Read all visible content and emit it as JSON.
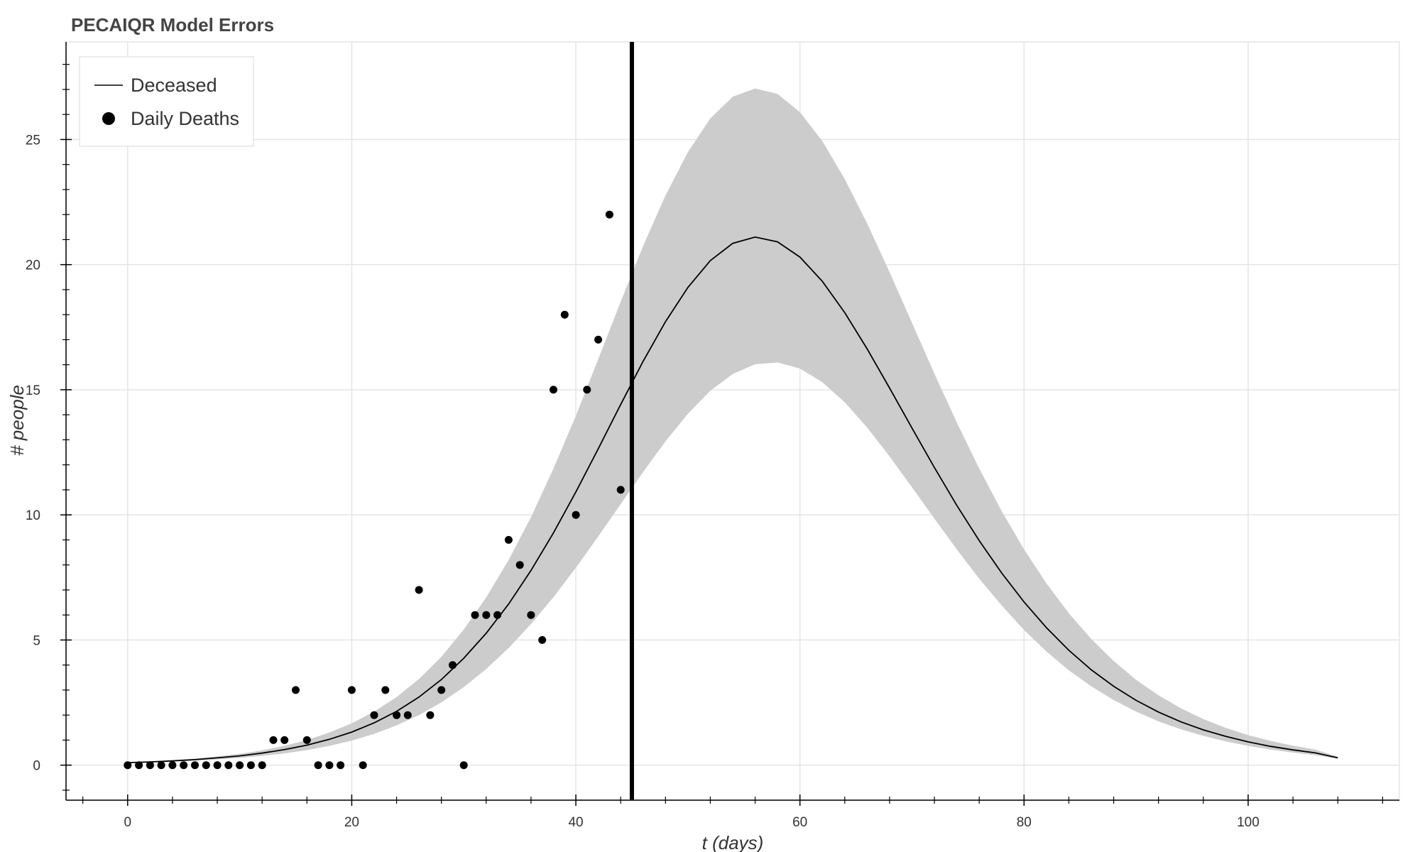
{
  "chart_data": {
    "type": "line",
    "title": "PECAIQR Model Errors",
    "xlabel": "t (days)",
    "ylabel": "# people",
    "xlim": [
      -5.5,
      113.5
    ],
    "ylim": [
      -1.4,
      28.9
    ],
    "x_ticks": [
      0,
      20,
      40,
      60,
      80,
      100
    ],
    "x_tick_labels": [
      "0",
      "20",
      "40",
      "60",
      "80",
      "100"
    ],
    "y_ticks": [
      0,
      5,
      10,
      15,
      20,
      25
    ],
    "y_tick_labels": [
      "0",
      "5",
      "10",
      "15",
      "20",
      "25"
    ],
    "grid": true,
    "legend": {
      "placement": "top-left",
      "entries": [
        {
          "label": "Deceased",
          "marker": "line"
        },
        {
          "label": "Daily Deaths",
          "marker": "circle"
        }
      ]
    },
    "vertical_line_x": 45,
    "band_color": "#cccccc",
    "series": [
      {
        "name": "Deceased",
        "type": "line",
        "color": "#000000",
        "x": [
          0,
          2,
          4,
          6,
          8,
          10,
          12,
          14,
          16,
          18,
          20,
          22,
          24,
          26,
          28,
          30,
          32,
          34,
          36,
          38,
          40,
          42,
          44,
          46,
          48,
          50,
          52,
          54,
          56,
          58,
          60,
          62,
          64,
          66,
          68,
          70,
          72,
          74,
          76,
          78,
          80,
          82,
          84,
          86,
          88,
          90,
          92,
          94,
          96,
          98,
          100,
          102,
          104,
          106,
          108
        ],
        "y": [
          0.1,
          0.13,
          0.17,
          0.22,
          0.29,
          0.37,
          0.48,
          0.62,
          0.8,
          1.03,
          1.32,
          1.69,
          2.15,
          2.72,
          3.42,
          4.27,
          5.27,
          6.44,
          7.78,
          9.28,
          10.92,
          12.64,
          14.41,
          16.13,
          17.72,
          19.09,
          20.16,
          20.85,
          21.1,
          20.91,
          20.3,
          19.33,
          18.08,
          16.63,
          15.07,
          13.47,
          11.89,
          10.38,
          8.97,
          7.68,
          6.52,
          5.49,
          4.59,
          3.81,
          3.15,
          2.59,
          2.12,
          1.73,
          1.41,
          1.15,
          0.93,
          0.75,
          0.61,
          0.49,
          0.29
        ]
      },
      {
        "name": "Daily Deaths",
        "type": "scatter",
        "color": "#000000",
        "x": [
          0,
          1,
          2,
          3,
          4,
          5,
          6,
          7,
          8,
          9,
          10,
          11,
          12,
          13,
          14,
          15,
          16,
          17,
          18,
          19,
          20,
          21,
          22,
          23,
          24,
          25,
          26,
          27,
          28,
          29,
          30,
          31,
          32,
          33,
          34,
          35,
          36,
          37,
          38,
          39,
          40,
          41,
          42,
          43,
          44
        ],
        "y": [
          0,
          0,
          0,
          0,
          0,
          0,
          0,
          0,
          0,
          0,
          0,
          0,
          0,
          1,
          1,
          3,
          1,
          0,
          0,
          0,
          3,
          0,
          2,
          3,
          2,
          2,
          7,
          2,
          3,
          4,
          0,
          6,
          6,
          6,
          9,
          8,
          6,
          5,
          15,
          18,
          10,
          15,
          17,
          22,
          11
        ]
      }
    ],
    "band": {
      "x": [
        0,
        2,
        4,
        6,
        8,
        10,
        12,
        14,
        16,
        18,
        20,
        22,
        24,
        26,
        28,
        30,
        32,
        34,
        36,
        38,
        40,
        42,
        44,
        46,
        48,
        50,
        52,
        54,
        56,
        58,
        60,
        62,
        64,
        66,
        68,
        70,
        72,
        74,
        76,
        78,
        80,
        82,
        84,
        86,
        88,
        90,
        92,
        94,
        96,
        98,
        100,
        102,
        104,
        106,
        108
      ],
      "lower": [
        0.09,
        0.11,
        0.14,
        0.18,
        0.23,
        0.29,
        0.37,
        0.47,
        0.6,
        0.77,
        0.98,
        1.25,
        1.59,
        2.0,
        2.51,
        3.12,
        3.84,
        4.68,
        5.64,
        6.71,
        7.89,
        9.14,
        10.43,
        11.71,
        12.94,
        14.04,
        14.96,
        15.63,
        16.02,
        16.09,
        15.85,
        15.3,
        14.5,
        13.49,
        12.34,
        11.1,
        9.85,
        8.62,
        7.45,
        6.38,
        5.4,
        4.54,
        3.79,
        3.15,
        2.6,
        2.14,
        1.75,
        1.43,
        1.17,
        0.95,
        0.77,
        0.62,
        0.5,
        0.4,
        0.26
      ],
      "upper": [
        0.12,
        0.15,
        0.2,
        0.26,
        0.35,
        0.45,
        0.59,
        0.77,
        1.0,
        1.3,
        1.67,
        2.14,
        2.72,
        3.44,
        4.33,
        5.42,
        6.7,
        8.2,
        9.91,
        11.85,
        13.96,
        16.22,
        18.52,
        20.74,
        22.76,
        24.5,
        25.84,
        26.71,
        27.04,
        26.82,
        26.09,
        24.93,
        23.42,
        21.64,
        19.7,
        17.67,
        15.64,
        13.69,
        11.85,
        10.15,
        8.62,
        7.26,
        6.07,
        5.04,
        4.16,
        3.41,
        2.79,
        2.27,
        1.84,
        1.49,
        1.2,
        0.97,
        0.78,
        0.62,
        0.34
      ]
    }
  }
}
